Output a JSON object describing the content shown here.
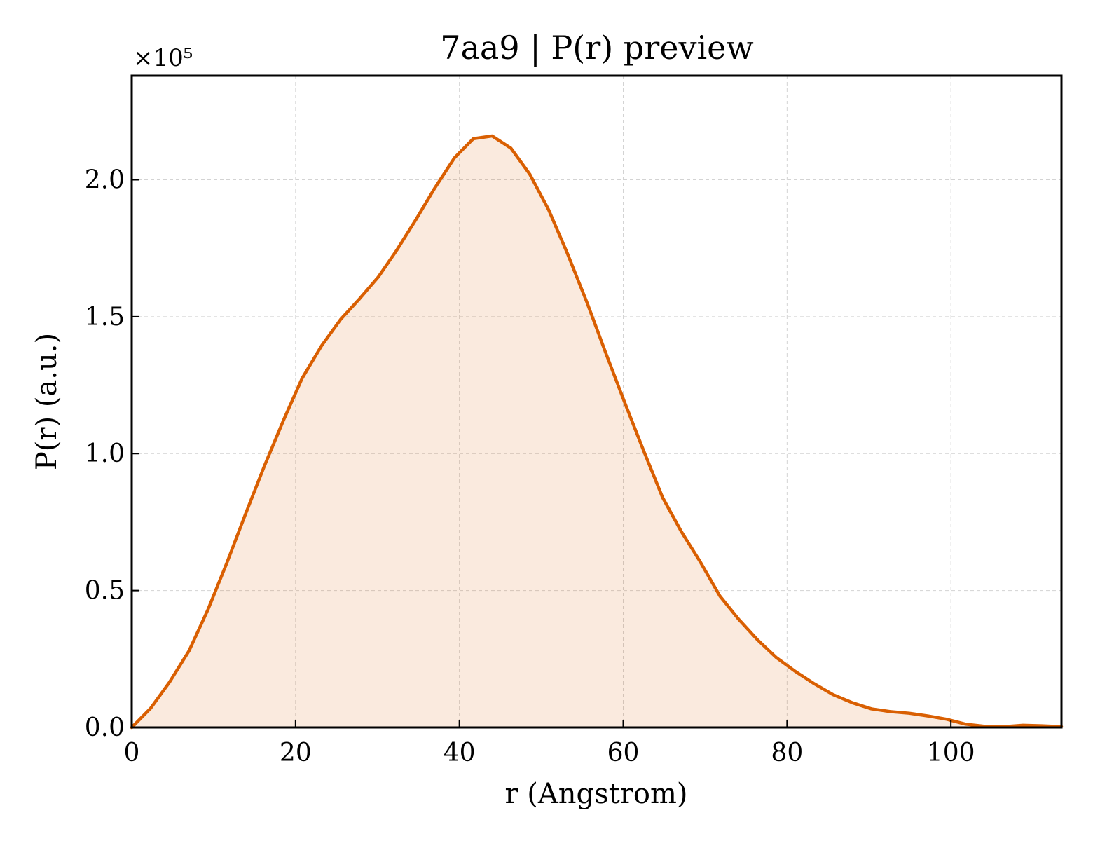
{
  "chart_data": {
    "type": "area",
    "title": "7aa9 | P(r) preview",
    "xlabel": "r (Angstrom)",
    "ylabel": "P(r) (a.u.)",
    "y_scale_label": "×10⁵",
    "xlim": [
      0,
      113.5
    ],
    "ylim": [
      0,
      2.38
    ],
    "y_unit_multiplier": 100000,
    "grid": true,
    "x_ticks": [
      0,
      20,
      40,
      60,
      80,
      100
    ],
    "x_tick_labels": [
      "0",
      "20",
      "40",
      "60",
      "80",
      "100"
    ],
    "y_ticks": [
      0,
      0.5,
      1.0,
      1.5,
      2.0
    ],
    "y_tick_labels": [
      "0.0",
      "0.5",
      "1.0",
      "1.5",
      "2.0"
    ],
    "series": [
      {
        "color": "#d95f02",
        "fill_color": "#d95f02",
        "fill_opacity": 0.13,
        "x": [
          0,
          2.3,
          4.6,
          7.0,
          9.3,
          11.6,
          13.9,
          16.2,
          18.5,
          20.8,
          23.2,
          25.5,
          27.8,
          30.1,
          32.4,
          34.7,
          37.0,
          39.4,
          41.7,
          44.0,
          46.3,
          48.6,
          50.9,
          53.2,
          55.6,
          57.9,
          60.2,
          62.5,
          64.8,
          67.1,
          69.4,
          71.8,
          74.1,
          76.4,
          78.7,
          81.0,
          83.3,
          85.6,
          88.0,
          90.3,
          92.6,
          94.9,
          97.2,
          99.5,
          101.8,
          104.2,
          106.5,
          108.8,
          111.1,
          113.5
        ],
        "y": [
          0,
          0.07,
          0.165,
          0.28,
          0.43,
          0.6,
          0.78,
          0.955,
          1.12,
          1.275,
          1.395,
          1.49,
          1.565,
          1.645,
          1.745,
          1.855,
          1.97,
          2.08,
          2.15,
          2.16,
          2.115,
          2.02,
          1.89,
          1.73,
          1.55,
          1.365,
          1.185,
          1.01,
          0.84,
          0.715,
          0.605,
          0.48,
          0.395,
          0.32,
          0.255,
          0.205,
          0.16,
          0.12,
          0.09,
          0.068,
          0.058,
          0.052,
          0.042,
          0.03,
          0.012,
          0.004,
          0.003,
          0.008,
          0.006,
          0.003
        ]
      }
    ]
  }
}
